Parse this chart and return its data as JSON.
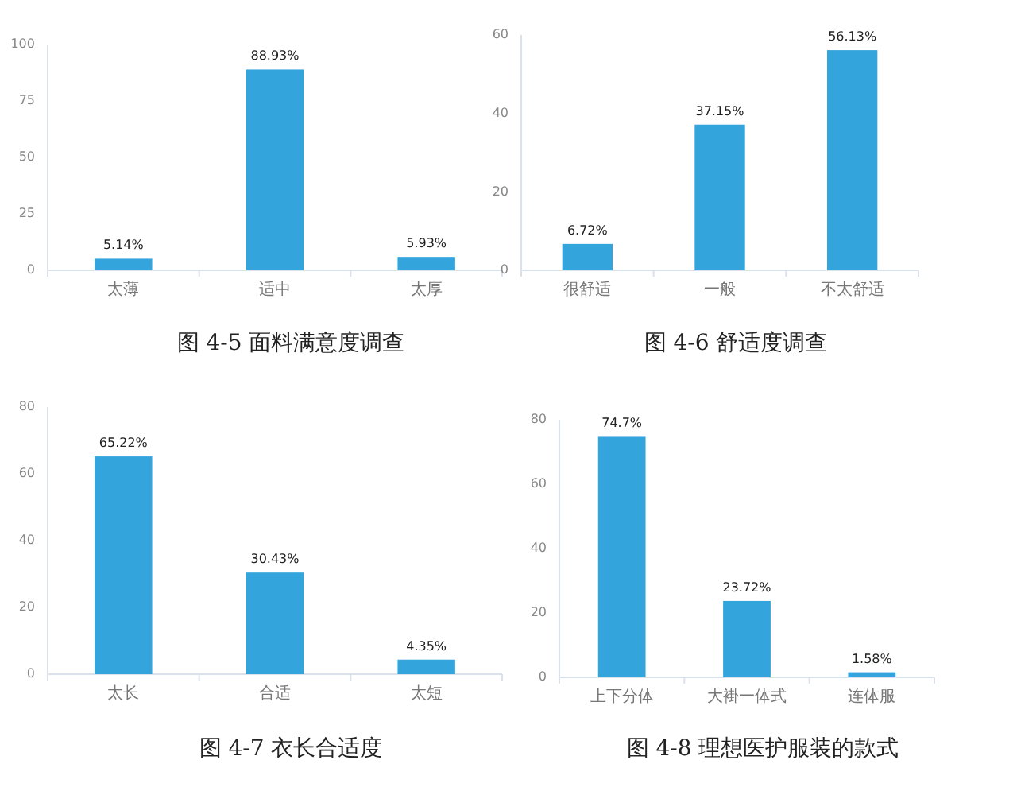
{
  "chart_data": [
    {
      "type": "bar",
      "title": "图 4-5  面料满意度调查",
      "categories": [
        "太薄",
        "适中",
        "太厚"
      ],
      "values": [
        5.14,
        88.93,
        5.93
      ],
      "value_labels": [
        "5.14%",
        "88.93%",
        "5.93%"
      ],
      "color": "#34a4dc",
      "ylim": [
        0,
        100
      ],
      "yticks": [
        0,
        25,
        50,
        75,
        100
      ]
    },
    {
      "type": "bar",
      "title": "图 4-6  舒适度调查",
      "categories": [
        "很舒适",
        "一般",
        "不太舒适"
      ],
      "values": [
        6.72,
        37.15,
        56.13
      ],
      "value_labels": [
        "6.72%",
        "37.15%",
        "56.13%"
      ],
      "color": "#34a4dc",
      "ylim": [
        0,
        60
      ],
      "yticks": [
        0,
        20,
        40,
        60
      ]
    },
    {
      "type": "bar",
      "title": "图 4-7  衣长合适度",
      "categories": [
        "太长",
        "合适",
        "太短"
      ],
      "values": [
        65.22,
        30.43,
        4.35
      ],
      "value_labels": [
        "65.22%",
        "30.43%",
        "4.35%"
      ],
      "color": "#34a4dc",
      "ylim": [
        0,
        80
      ],
      "yticks": [
        0,
        20,
        40,
        60,
        80
      ]
    },
    {
      "type": "bar",
      "title": "图 4-8  理想医护服装的款式",
      "categories": [
        "上下分体",
        "大褂一体式",
        "连体服"
      ],
      "values": [
        74.7,
        23.72,
        1.58
      ],
      "value_labels": [
        "74.7%",
        "23.72%",
        "1.58%"
      ],
      "color": "#34a4dc",
      "ylim": [
        0,
        80
      ],
      "yticks": [
        0,
        20,
        40,
        60,
        80
      ]
    }
  ]
}
